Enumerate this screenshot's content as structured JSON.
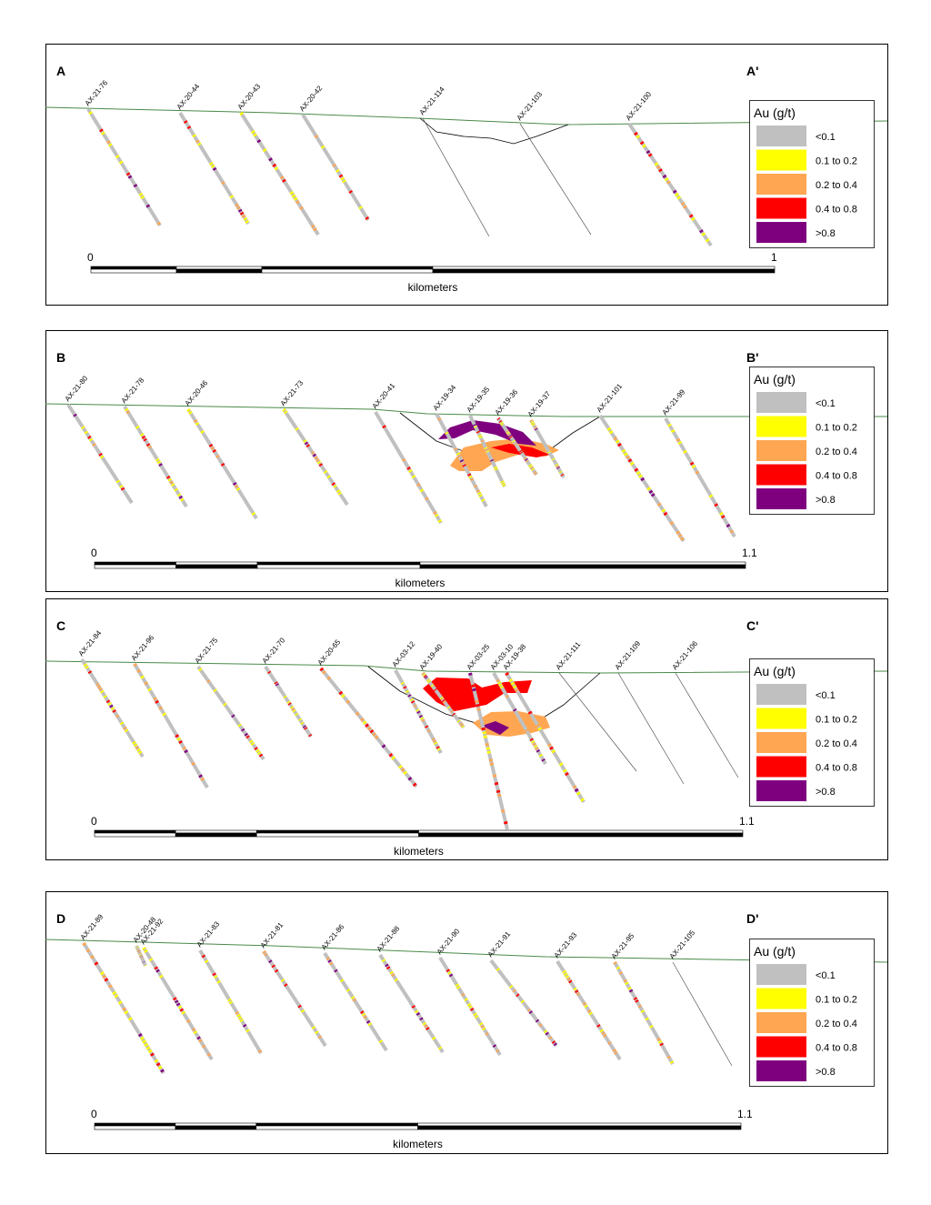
{
  "legend": {
    "title": "Au (g/t)",
    "items": [
      {
        "label": "<0.1",
        "color": "#c0c0c0"
      },
      {
        "label": "0.1 to 0.2",
        "color": "#ffff00"
      },
      {
        "label": "0.2 to 0.4",
        "color": "#ffa652"
      },
      {
        "label": "0.4 to 0.8",
        "color": "#ff0000"
      },
      {
        "label": ">0.8",
        "color": "#7f007f"
      }
    ]
  },
  "panels": [
    {
      "start": "A",
      "end": "A'",
      "scale_min": "0",
      "scale_max": "1",
      "scale_unit": "kilometers",
      "holes": [
        "AX-21-76",
        "AX-20-44",
        "AX-20-43",
        "AX-20-42",
        "AX-21-114",
        "AX-21-103",
        "AX-21-100"
      ]
    },
    {
      "start": "B",
      "end": "B'",
      "scale_min": "0",
      "scale_max": "1.1",
      "scale_unit": "kilometers",
      "holes": [
        "AX-21-80",
        "AX-21-78",
        "AX-20-46",
        "AX-21-73",
        "AX-20-41",
        "AX-19-34",
        "AX-19-35",
        "AX-19-36",
        "AX-19-37",
        "AX-21-101",
        "AX-21-99"
      ]
    },
    {
      "start": "C",
      "end": "C'",
      "scale_min": "0",
      "scale_max": "1.1",
      "scale_unit": "kilometers",
      "holes": [
        "AX-21-84",
        "AX-21-96",
        "AX-21-75",
        "AX-21-70",
        "AX-20-65",
        "AX-03-12",
        "AX-19-40",
        "AX-03-25",
        "AX-03-10",
        "AX-19-38",
        "AX-21-111",
        "AX-21-109",
        "AX-21-106"
      ]
    },
    {
      "start": "D",
      "end": "D'",
      "scale_min": "0",
      "scale_max": "1.1",
      "scale_unit": "kilometers",
      "holes": [
        "AX-21-89",
        "AX-20-48",
        "AX-21-92",
        "AX-21-83",
        "AX-21-81",
        "AX-21-86",
        "AX-21-88",
        "AX-21-90",
        "AX-21-91",
        "AX-21-93",
        "AX-21-95",
        "AX-21-105"
      ]
    }
  ]
}
